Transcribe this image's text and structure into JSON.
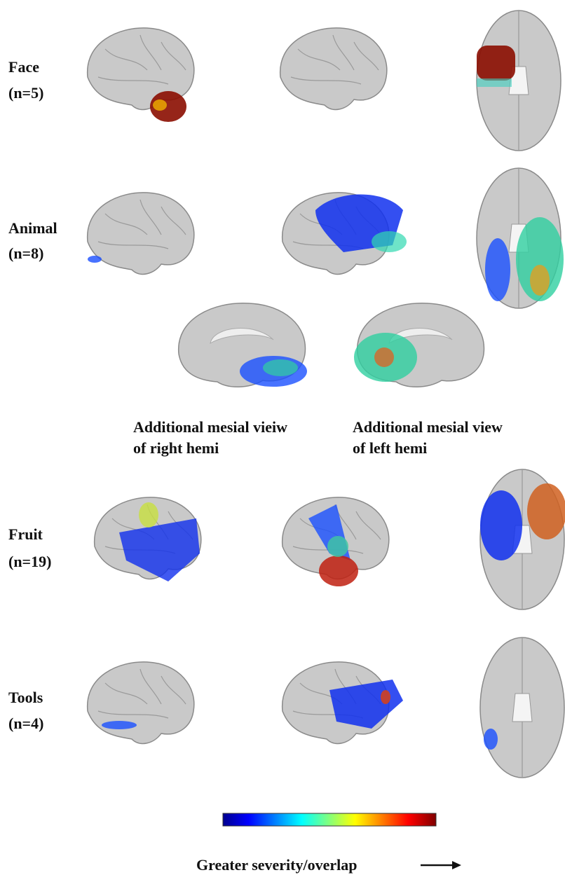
{
  "rows": [
    {
      "label": "Face",
      "count": "(n=5)"
    },
    {
      "label": "Animal",
      "count": "(n=8)"
    },
    {
      "label": "Fruit",
      "count": "(n=19)"
    },
    {
      "label": "Tools",
      "count": "(n=4)"
    }
  ],
  "mesial_captions": [
    {
      "line1": "Additional mesial vieiw",
      "line2": "of right hemi"
    },
    {
      "line1": "Additional mesial view",
      "line2": "of left hemi"
    }
  ],
  "colorbar_label": "Greater severity/overlap"
}
